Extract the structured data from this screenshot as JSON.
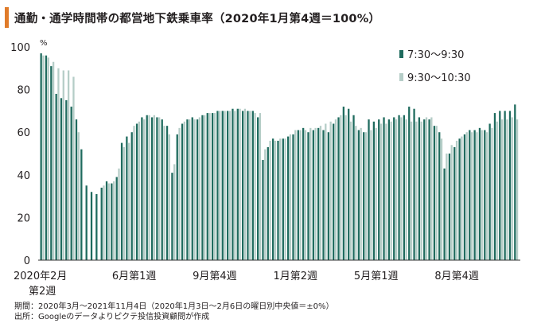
{
  "title": "通勤・通学時間帯の都営地下鉄乗車率（2020年1月第4週＝100%）",
  "chart_data": {
    "type": "bar",
    "title": "通勤・通学時間帯の都営地下鉄乗車率（2020年1月第4週＝100%）",
    "ylabel": "%",
    "ylim": [
      0,
      100
    ],
    "yticks": [
      "0",
      "20",
      "40",
      "60",
      "80",
      "100"
    ],
    "grid": false,
    "legend_position": "top-right",
    "x_tick_labels": [
      "2020年2月\n第2週",
      "6月第1週",
      "9月第4週",
      "1月第2週",
      "5月第1週",
      "8月第4週"
    ],
    "x_tick_weeks": [
      0,
      16,
      32,
      48,
      64,
      80
    ],
    "series": [
      {
        "name": "7:30～9:30",
        "color": "#1f6b5e",
        "values": [
          97,
          96,
          91,
          78,
          76,
          75,
          72,
          66,
          52,
          35,
          32,
          31,
          34,
          37,
          36,
          39,
          55,
          58,
          60,
          64,
          67,
          68,
          67,
          67,
          66,
          63,
          41,
          59,
          64,
          66,
          67,
          66,
          68,
          69,
          69,
          70,
          70,
          70,
          71,
          71,
          70,
          70,
          70,
          67,
          47,
          53,
          57,
          56,
          57,
          58,
          59,
          61,
          62,
          60,
          61,
          62,
          61,
          60,
          64,
          67,
          72,
          71,
          68,
          61,
          60,
          66,
          65,
          66,
          67,
          66,
          67,
          68,
          68,
          72,
          71,
          67,
          66,
          66,
          63,
          60,
          43,
          50,
          53,
          57,
          59,
          61,
          61,
          62,
          61,
          64,
          69,
          70,
          70,
          70,
          73
        ]
      },
      {
        "name": "9:30～10:30",
        "color": "#b5cdc7",
        "values": [
          96,
          95,
          93,
          90,
          89,
          89,
          86,
          60,
          null,
          null,
          null,
          null,
          35,
          36,
          37,
          43,
          53,
          55,
          63,
          65,
          66,
          68,
          68,
          67,
          63,
          59,
          45,
          62,
          65,
          66,
          66,
          67,
          68,
          69,
          69,
          70,
          70,
          70,
          70,
          71,
          71,
          70,
          69,
          69,
          52,
          56,
          56,
          57,
          57,
          59,
          61,
          61,
          61,
          62,
          62,
          63,
          64,
          65,
          66,
          68,
          68,
          65,
          63,
          62,
          60,
          61,
          62,
          64,
          64,
          65,
          66,
          67,
          66,
          65,
          65,
          65,
          67,
          67,
          63,
          57,
          50,
          54,
          56,
          58,
          60,
          60,
          60,
          61,
          60,
          62,
          65,
          66,
          66,
          67,
          66
        ]
      }
    ],
    "source_notes": [
      "期間：2020年3月～2021年11月4日（2020年1月3日～2月6日の曜日別中央値＝±0%）",
      "出所：Googleのデータよりピクテ投信投資顧問が作成"
    ]
  }
}
